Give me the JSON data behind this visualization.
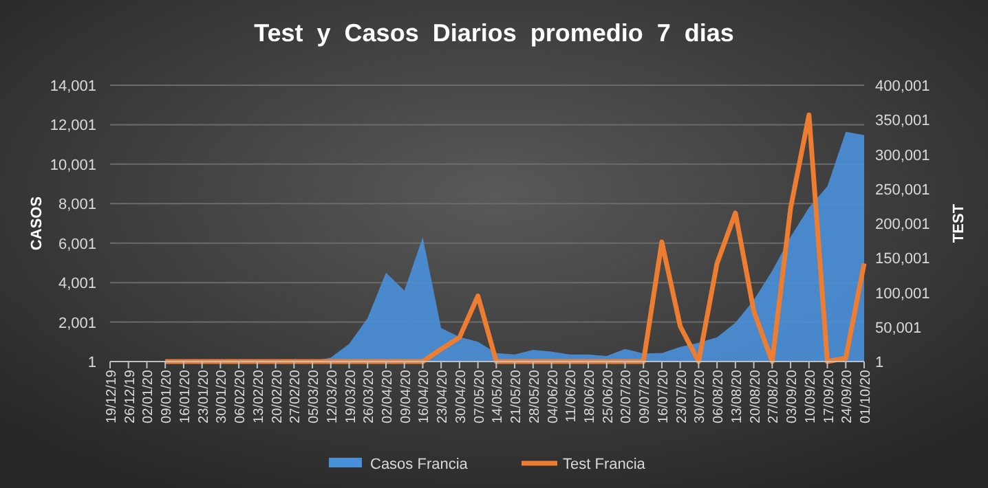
{
  "chart_data": {
    "type": "area",
    "title": "Test  y  Casos  Diarios  promedio  7  dias",
    "ylabel": "CASOS",
    "y2label": "TEST",
    "categories": [
      "19/12/19",
      "26/12/19",
      "02/01/20",
      "09/01/20",
      "16/01/20",
      "23/01/20",
      "30/01/20",
      "06/02/20",
      "13/02/20",
      "20/02/20",
      "27/02/20",
      "05/03/20",
      "12/03/20",
      "19/03/20",
      "26/03/20",
      "02/04/20",
      "09/04/20",
      "16/04/20",
      "23/04/20",
      "30/04/20",
      "07/05/20",
      "14/05/20",
      "21/05/20",
      "28/05/20",
      "04/06/20",
      "11/06/20",
      "18/06/20",
      "25/06/20",
      "02/07/20",
      "09/07/20",
      "16/07/20",
      "23/07/20",
      "30/07/20",
      "06/08/20",
      "13/08/20",
      "20/08/20",
      "27/08/20",
      "03/09/20",
      "10/09/20",
      "17/09/20",
      "24/09/20",
      "01/10/20"
    ],
    "series": [
      {
        "name": "Casos Francia",
        "color": "#4a90d9",
        "values": [
          1,
          1,
          1,
          1,
          1,
          1,
          1,
          1,
          1,
          1,
          1,
          1,
          200,
          900,
          2200,
          4500,
          3600,
          6300,
          1700,
          1250,
          1000,
          430,
          360,
          590,
          510,
          360,
          360,
          280,
          640,
          410,
          430,
          740,
          950,
          1230,
          1970,
          3120,
          4600,
          6320,
          7800,
          8880,
          11640,
          11480
        ]
      },
      {
        "name": "Test Francia",
        "type": "line",
        "axis": "y2",
        "color": "#ed7d31",
        "values": [
          null,
          null,
          null,
          1,
          1,
          1,
          1,
          1,
          1,
          1,
          1,
          1,
          1,
          1,
          1,
          1,
          1,
          1,
          18000,
          35000,
          95000,
          1,
          1,
          1,
          1,
          1,
          1,
          1,
          1,
          1,
          173000,
          51000,
          1,
          142000,
          215000,
          73000,
          1,
          222000,
          357000,
          1,
          5000,
          142000
        ]
      }
    ],
    "ylim": [
      1,
      14001
    ],
    "yticks": [
      {
        "value": 1,
        "label": "1"
      },
      {
        "value": 2001,
        "label": "2,001"
      },
      {
        "value": 4001,
        "label": "4,001"
      },
      {
        "value": 6001,
        "label": "6,001"
      },
      {
        "value": 8001,
        "label": "8,001"
      },
      {
        "value": 10001,
        "label": "10,001"
      },
      {
        "value": 12001,
        "label": "12,001"
      },
      {
        "value": 14001,
        "label": "14,001"
      }
    ],
    "y2lim": [
      1,
      400001
    ],
    "y2ticks": [
      {
        "value": 1,
        "label": "1"
      },
      {
        "value": 50001,
        "label": "50,001"
      },
      {
        "value": 100001,
        "label": "100,001"
      },
      {
        "value": 150001,
        "label": "150,001"
      },
      {
        "value": 200001,
        "label": "200,001"
      },
      {
        "value": 250001,
        "label": "250,001"
      },
      {
        "value": 300001,
        "label": "300,001"
      },
      {
        "value": 350001,
        "label": "350,001"
      },
      {
        "value": 400001,
        "label": "400,001"
      }
    ],
    "grid": "y",
    "legend": "bottom"
  }
}
